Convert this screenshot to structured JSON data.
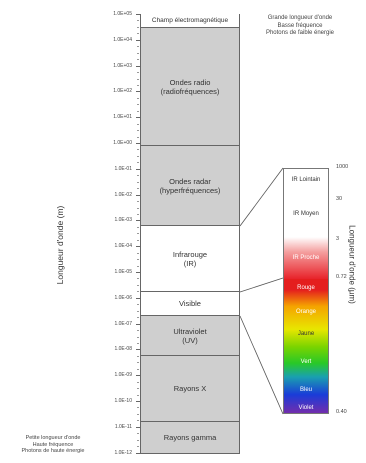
{
  "axis": {
    "ylabel": "Longueur d'onde (m)",
    "ticks": [
      "1.0E+05",
      "1.0E+04",
      "1.0E+03",
      "1.0E+02",
      "1.0E+01",
      "1.0E+00",
      "1.0E-01",
      "1.0E-02",
      "1.0E-03",
      "1.0E-04",
      "1.0E-05",
      "1.0E-06",
      "1.0E-07",
      "1.0E-08",
      "1.0E-09",
      "1.0E-10",
      "1.0E-11",
      "1.0E-12"
    ]
  },
  "column_header": "Champ électromagnétique",
  "bands": [
    {
      "line1": "Ondes radio",
      "line2": "(radiofréquences)"
    },
    {
      "line1": "Ondes radar",
      "line2": "(hyperfréquences)"
    },
    {
      "line1": "Infrarouge",
      "line2": "(IR)"
    },
    {
      "line1": "Visible",
      "line2": ""
    },
    {
      "line1": "Ultraviolet",
      "line2": "(UV)"
    },
    {
      "line1": "Rayons X",
      "line2": ""
    },
    {
      "line1": "Rayons gamma",
      "line2": ""
    }
  ],
  "top_note": [
    "Grande longueur d'onde",
    "Basse fréquence",
    "Photons de faible énergie"
  ],
  "bottom_note": [
    "Petite longueur d'onde",
    "Haute fréquence",
    "Photons de haute énergie"
  ],
  "zoom": {
    "segments": [
      {
        "label": "IR Lointain",
        "color": "#ffffff"
      },
      {
        "label": "IR Moyen",
        "color": "#ffffff"
      },
      {
        "label": "IR Proche",
        "color": "#e8232a"
      },
      {
        "label": "Rouge",
        "color": "#e41e1e"
      },
      {
        "label": "Orange",
        "color": "#f5a300"
      },
      {
        "label": "Jaune",
        "color": "#e8e600"
      },
      {
        "label": "Vert",
        "color": "#28c828"
      },
      {
        "label": "Bleu",
        "color": "#1a3cd8"
      },
      {
        "label": "Violet",
        "color": "#7b2ca8"
      }
    ],
    "boundary_labels": [
      "1000",
      "30",
      "3",
      "0.72",
      "0.40"
    ],
    "ylabel": "Longueur d'onde (µm)"
  }
}
